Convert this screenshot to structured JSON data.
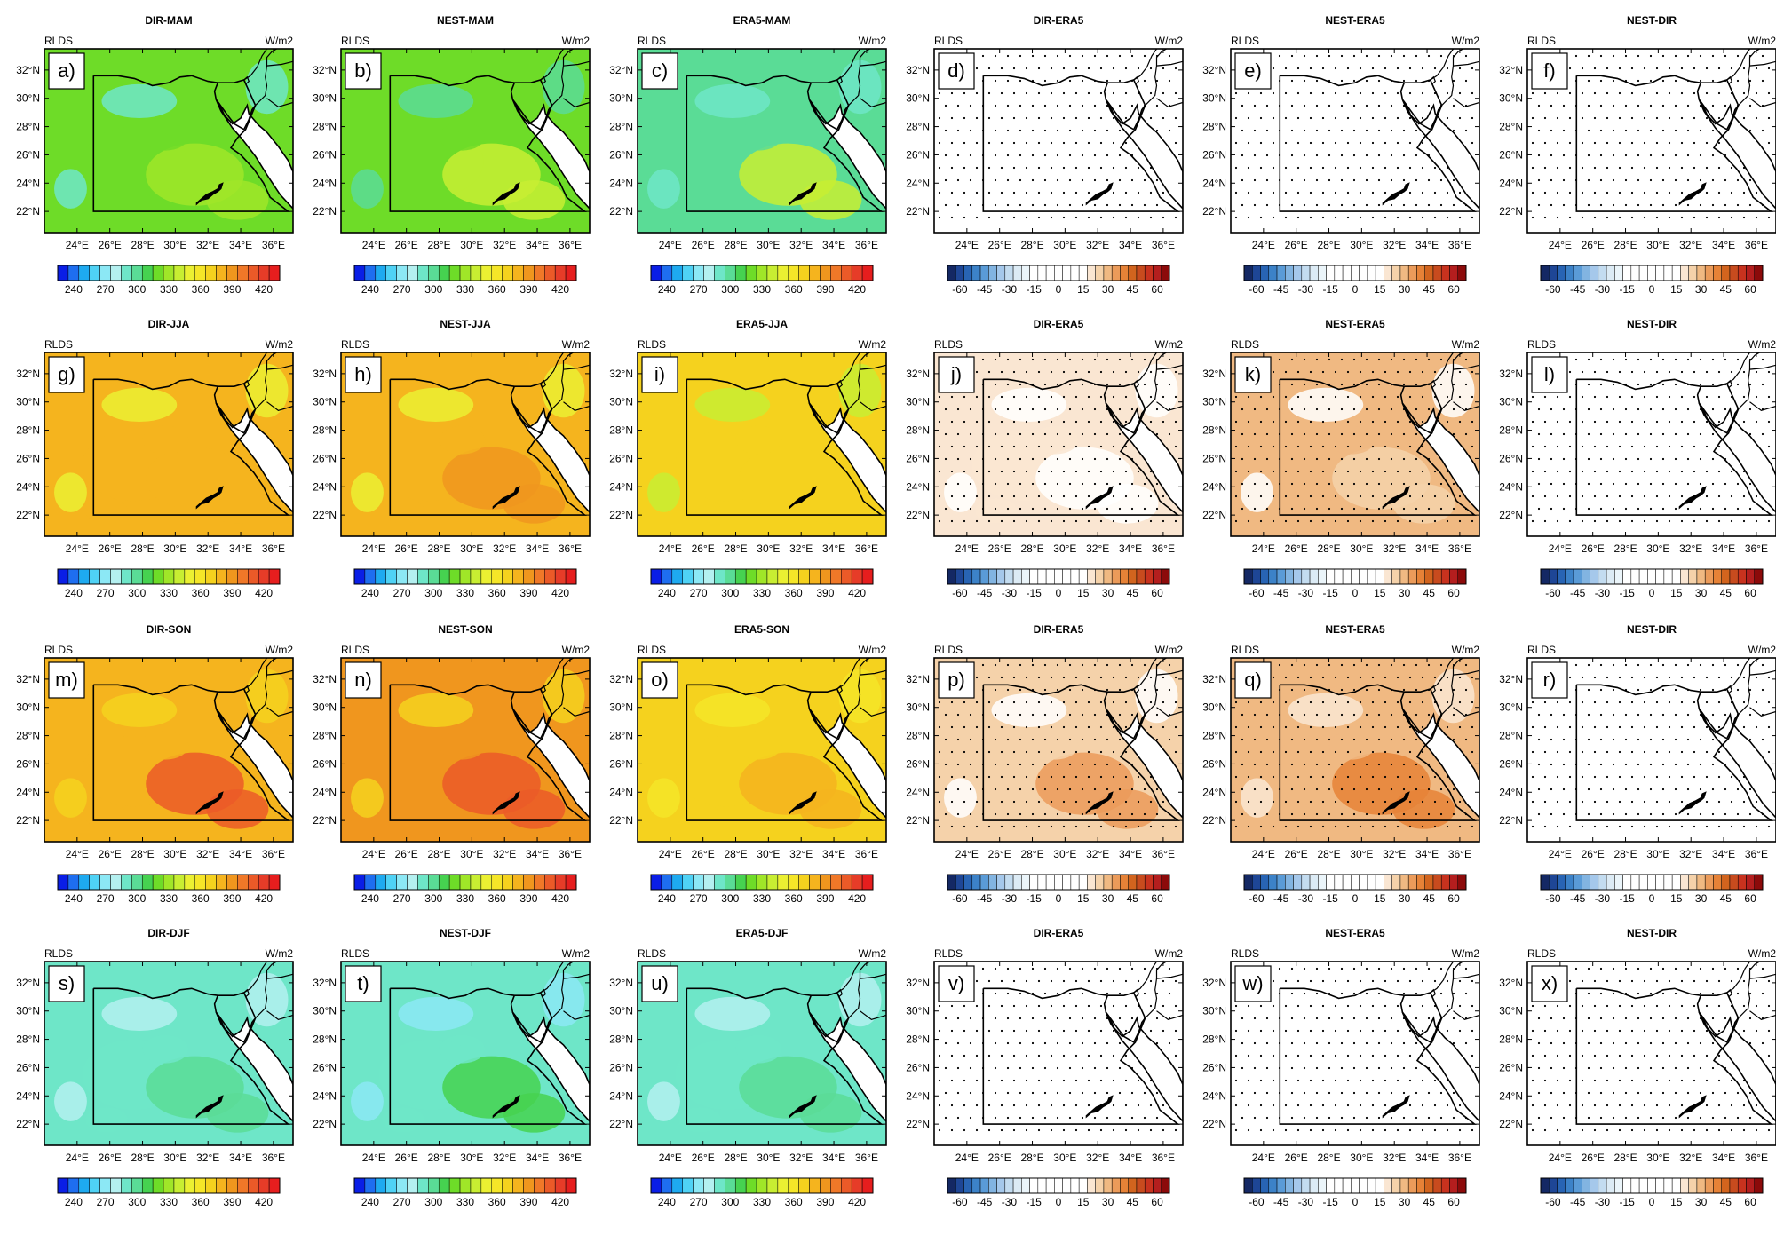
{
  "figure": {
    "variable": "RLDS",
    "units": "W/m2",
    "lat_labels": [
      "32°N",
      "30°N",
      "28°N",
      "26°N",
      "24°N",
      "22°N"
    ],
    "lon_labels": [
      "24°E",
      "26°E",
      "28°E",
      "30°E",
      "32°E",
      "34°E",
      "36°E"
    ],
    "region": {
      "lon": [
        22,
        37.2
      ],
      "lat": [
        20.5,
        33.5
      ]
    },
    "colorbars": {
      "absolute": {
        "ticks": [
          "240",
          "270",
          "300",
          "330",
          "360",
          "390",
          "420"
        ],
        "range": [
          225,
          435
        ],
        "n_colors": 21,
        "stops": [
          "#0a1ee6",
          "#1e6ef0",
          "#1eaaf0",
          "#4fd2f5",
          "#8ce8f5",
          "#b4f0f0",
          "#6ee6c8",
          "#5adc96",
          "#46d250",
          "#6edc28",
          "#a0e628",
          "#c8ee32",
          "#ebf032",
          "#f5e628",
          "#f5d21e",
          "#f5b41e",
          "#f0961e",
          "#f07828",
          "#eb5a28",
          "#e63c28",
          "#e61e1e"
        ]
      },
      "difference": {
        "ticks": [
          "-60",
          "-45",
          "-30",
          "-15",
          "0",
          "15",
          "30",
          "45",
          "60"
        ],
        "range": [
          -67.5,
          67.5
        ],
        "n_colors": 27,
        "stops": [
          "#142864",
          "#1e4696",
          "#2864b4",
          "#3c82c8",
          "#5a9bd7",
          "#82b4e1",
          "#a5c8eb",
          "#c3dcf0",
          "#dcebf5",
          "#ebf5fa",
          "#ffffff",
          "#ffffff",
          "#ffffff",
          "#ffffff",
          "#ffffff",
          "#ffffff",
          "#ffffff",
          "#fae6d2",
          "#f5d2aa",
          "#f0b982",
          "#eb9b5a",
          "#e68237",
          "#d2641e",
          "#c84b1e",
          "#c8321e",
          "#b41e1e",
          "#8c0a0a"
        ]
      }
    },
    "panels": [
      {
        "id": "a",
        "title": "DIR-MAM",
        "type": "absolute",
        "base": 318,
        "coast": 290,
        "se": 330,
        "stipple": false
      },
      {
        "id": "b",
        "title": "NEST-MAM",
        "type": "absolute",
        "base": 315,
        "coast": 295,
        "se": 335,
        "stipple": false
      },
      {
        "id": "c",
        "title": "ERA5-MAM",
        "type": "absolute",
        "base": 298,
        "coast": 290,
        "se": 335,
        "stipple": false
      },
      {
        "id": "d",
        "title": "DIR-ERA5",
        "type": "difference",
        "base": 8,
        "coast": -5,
        "se": 5,
        "stipple": true
      },
      {
        "id": "e",
        "title": "NEST-ERA5",
        "type": "difference",
        "base": 8,
        "coast": -5,
        "se": 10,
        "stipple": true
      },
      {
        "id": "f",
        "title": "NEST-DIR",
        "type": "difference",
        "base": 3,
        "coast": -10,
        "se": 5,
        "stipple": true
      },
      {
        "id": "g",
        "title": "DIR-JJA",
        "type": "absolute",
        "base": 378,
        "coast": 345,
        "se": 375,
        "stipple": false
      },
      {
        "id": "h",
        "title": "NEST-JJA",
        "type": "absolute",
        "base": 382,
        "coast": 350,
        "se": 385,
        "stipple": false
      },
      {
        "id": "i",
        "title": "ERA5-JJA",
        "type": "absolute",
        "base": 370,
        "coast": 340,
        "se": 370,
        "stipple": false
      },
      {
        "id": "j",
        "title": "DIR-ERA5",
        "type": "difference",
        "base": 22,
        "coast": 5,
        "se": 15,
        "stipple": true
      },
      {
        "id": "k",
        "title": "NEST-ERA5",
        "type": "difference",
        "base": 32,
        "coast": 15,
        "se": 25,
        "stipple": true
      },
      {
        "id": "l",
        "title": "NEST-DIR",
        "type": "difference",
        "base": 12,
        "coast": 0,
        "se": 15,
        "stipple": true
      },
      {
        "id": "m",
        "title": "DIR-SON",
        "type": "absolute",
        "base": 380,
        "coast": 365,
        "se": 405,
        "stipple": false
      },
      {
        "id": "n",
        "title": "NEST-SON",
        "type": "absolute",
        "base": 388,
        "coast": 370,
        "se": 410,
        "stipple": false
      },
      {
        "id": "o",
        "title": "ERA5-SON",
        "type": "absolute",
        "base": 365,
        "coast": 355,
        "se": 375,
        "stipple": false
      },
      {
        "id": "p",
        "title": "DIR-ERA5",
        "type": "difference",
        "base": 24,
        "coast": 12,
        "se": 36,
        "stipple": true
      },
      {
        "id": "q",
        "title": "NEST-ERA5",
        "type": "difference",
        "base": 32,
        "coast": 20,
        "se": 38,
        "stipple": true
      },
      {
        "id": "r",
        "title": "NEST-DIR",
        "type": "difference",
        "base": 10,
        "coast": 5,
        "se": 5,
        "stipple": true
      },
      {
        "id": "s",
        "title": "DIR-DJF",
        "type": "absolute",
        "base": 292,
        "coast": 275,
        "se": 300,
        "stipple": false
      },
      {
        "id": "t",
        "title": "NEST-DJF",
        "type": "absolute",
        "base": 294,
        "coast": 272,
        "se": 305,
        "stipple": false
      },
      {
        "id": "u",
        "title": "ERA5-DJF",
        "type": "absolute",
        "base": 285,
        "coast": 275,
        "se": 295,
        "stipple": false
      },
      {
        "id": "v",
        "title": "DIR-ERA5",
        "type": "difference",
        "base": 4,
        "coast": -5,
        "se": 5,
        "stipple": true
      },
      {
        "id": "w",
        "title": "NEST-ERA5",
        "type": "difference",
        "base": 9,
        "coast": -5,
        "se": 5,
        "stipple": true
      },
      {
        "id": "x",
        "title": "NEST-DIR",
        "type": "difference",
        "base": 4,
        "coast": -3,
        "se": 3,
        "stipple": true
      }
    ]
  }
}
